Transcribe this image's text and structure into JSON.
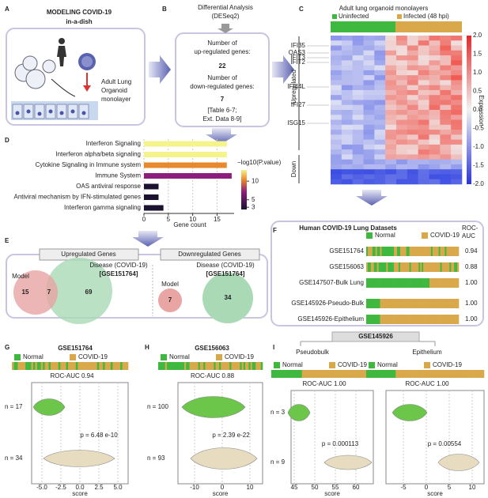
{
  "panel_labels": [
    "A",
    "B",
    "C",
    "D",
    "E",
    "F",
    "G",
    "H",
    "I"
  ],
  "a": {
    "title": "MODELING COVID-19",
    "subtitle": "in-a-dish",
    "label_lines": [
      "Adult Lung",
      "Organoid",
      "monolayer"
    ]
  },
  "b": {
    "title_lines": [
      "Differential Analysis",
      "(DESeq2)"
    ],
    "up_label_lines": [
      "Number of",
      "up-regulated genes:"
    ],
    "up_count": 22,
    "down_label_lines": [
      "Number of",
      "down-regulated genes:"
    ],
    "down_count": 7,
    "note_lines": [
      "[Table 6-7;",
      "Ext. Data 8-9]"
    ]
  },
  "c": {
    "title": "Adult lung organoid monolayers",
    "legend": [
      "Uninfected",
      "Infected (48 hpi)"
    ],
    "genes": [
      "IFI35",
      "OAS3",
      "IFIT3",
      "IFIT2",
      "IFI44L",
      "IFI27",
      "ISG15"
    ],
    "groups": [
      "Upregulated",
      "Down"
    ],
    "colorbar_label": "Expression",
    "colorbar_ticks": [
      "2.0",
      "1.5",
      "1.0",
      "0.5",
      "0.0",
      "-0.5",
      "-1.0",
      "-1.5",
      "-2.0"
    ]
  },
  "chart_data": {
    "type": "bar",
    "orientation": "horizontal",
    "categories": [
      "Interferon Signaling",
      "Interferon alpha/beta signaling",
      "Cytokine Signaling in Immune system",
      "Immune System",
      "OAS antiviral response",
      "Antiviral mechanism by IFN-stimulated genes",
      "Interferon gamma signaling"
    ],
    "values": [
      17,
      17,
      17,
      18,
      3,
      3,
      4
    ],
    "colors": [
      "#f4f48a",
      "#f4f48a",
      "#e8892c",
      "#8c1f7c",
      "#1b1232",
      "#1b1232",
      "#1b1232"
    ],
    "xlim": [
      0,
      18.5
    ],
    "xticks": [
      0,
      5,
      10,
      15
    ],
    "xlabel": "Gene count",
    "grid": true,
    "colorbar": {
      "title": "−log10(P.value)",
      "ticks": [
        10,
        5,
        3
      ],
      "lim": [
        2.4,
        13
      ]
    }
  },
  "e": {
    "up_title": "Upregulated Genes",
    "down_title": "Downregulated Genes",
    "model": "Model",
    "disease_lines": [
      "Disease (COVID-19)",
      "[GSE151764]"
    ],
    "up_model_only": 15,
    "up_overlap": 7,
    "up_disease_only": 69,
    "down_model": 7,
    "down_disease": 34
  },
  "f": {
    "title": "Human  COVID-19 Lung Datasets",
    "legend": [
      "Normal",
      "COVID-19"
    ],
    "roc_header_lines": [
      "ROC-",
      "AUC"
    ],
    "rows": [
      {
        "name": "GSE151764",
        "auc": "0.94"
      },
      {
        "name": "GSE156063",
        "auc": "0.88"
      },
      {
        "name": "GSE147507-Bulk Lung",
        "auc": "1.00"
      },
      {
        "name": "GSE145926-Pseudo-Bulk",
        "auc": "1.00"
      },
      {
        "name": "GSE145926-Epithelium",
        "auc": "1.00"
      }
    ]
  },
  "g": {
    "title": "GSE151764",
    "legend": [
      "Normal",
      "COVID-19"
    ],
    "roc": "ROC-AUC 0.94",
    "n": [
      "n = 17",
      "n = 34"
    ],
    "p": "p = 6.48 e-10",
    "xticks": [
      "-5.0",
      "-2.5",
      "0.0",
      "2.5",
      "5.0"
    ],
    "xlabel": "score"
  },
  "h": {
    "title": "GSE156063",
    "legend": [
      "Normal",
      "COVID-19"
    ],
    "roc": "ROC-AUC 0.88",
    "n": [
      "n = 100",
      "n = 93"
    ],
    "p": "p = 2.39 e-22",
    "xticks": [
      "-10",
      "0",
      "10"
    ],
    "xlabel": "score"
  },
  "i": {
    "title": "GSE145926",
    "sub": [
      {
        "title": "Pseudobulk",
        "legend": [
          "Normal",
          "COVID-19"
        ],
        "roc": "ROC-AUC 1.00",
        "n": [
          "n = 3",
          "n = 9"
        ],
        "p": "p = 0.000113",
        "xticks": [
          "45",
          "50",
          "55",
          "60"
        ],
        "xlabel": "score"
      },
      {
        "title": "Epithelium",
        "legend": [
          "Normal",
          "COVID-19"
        ],
        "roc": "ROC-AUC 1.00",
        "p": "p = 0.00554",
        "xticks": [
          "-5",
          "0",
          "5",
          "10"
        ],
        "xlabel": "score"
      }
    ]
  }
}
